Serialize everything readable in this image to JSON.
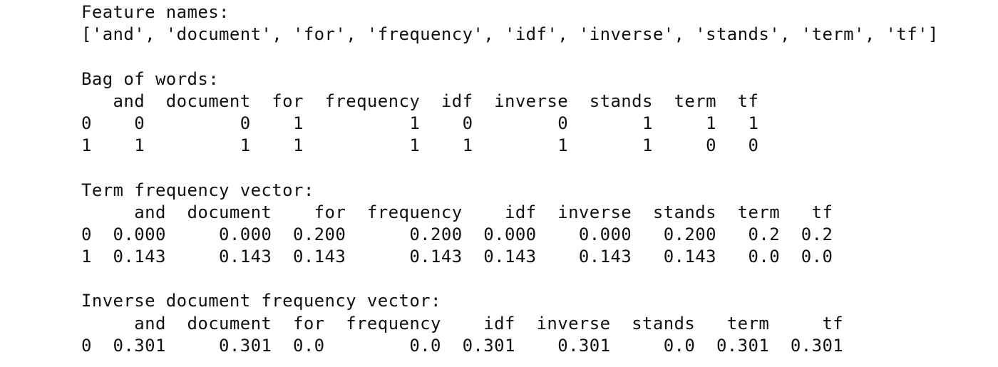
{
  "output": {
    "lines": [
      "Feature names:",
      "['and', 'document', 'for', 'frequency', 'idf', 'inverse', 'stands', 'term', 'tf']",
      "",
      "Bag of words:",
      "   and  document  for  frequency  idf  inverse  stands  term  tf",
      "0    0         0    1          1    0        0       1     1   1",
      "1    1         1    1          1    1        1       1     0   0",
      "",
      "Term frequency vector:",
      "     and  document    for  frequency    idf  inverse  stands  term   tf",
      "0  0.000     0.000  0.200      0.200  0.000    0.000   0.200   0.2  0.2",
      "1  0.143     0.143  0.143      0.143  0.143    0.143   0.143   0.0  0.0",
      "",
      "Inverse document frequency vector:",
      "     and  document  for  frequency    idf  inverse  stands   term     tf",
      "0  0.301     0.301  0.0        0.0  0.301    0.301     0.0  0.301  0.301"
    ]
  }
}
